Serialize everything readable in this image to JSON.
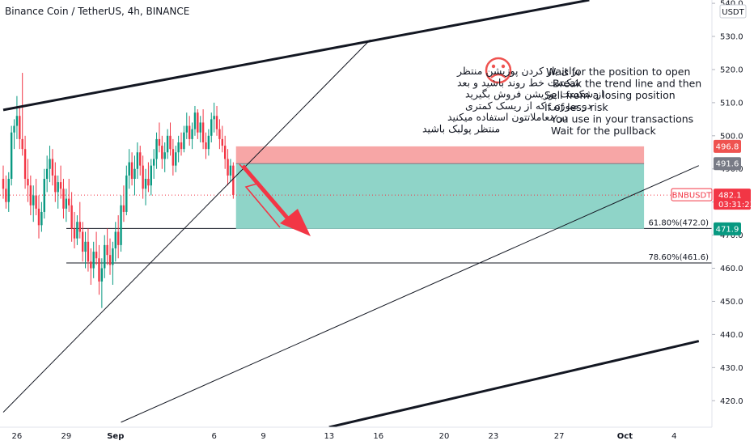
{
  "title": "Binance Coin / TetherUS, 4h, BINANCE",
  "currency": "USDT",
  "chart_data": {
    "type": "candlestick",
    "symbol": "BNBUSDT",
    "interval": "4h",
    "exchange": "BINANCE",
    "ylim": [
      412,
      541
    ],
    "y_ticks": [
      420,
      430,
      440,
      450,
      460,
      470,
      480,
      490,
      500,
      510,
      520,
      530,
      540
    ],
    "x_ticks": [
      {
        "label": "26",
        "i": 5
      },
      {
        "label": "29",
        "i": 23
      },
      {
        "label": "Sep",
        "i": 41
      },
      {
        "label": "6",
        "i": 77
      },
      {
        "label": "9",
        "i": 95
      },
      {
        "label": "13",
        "i": 119
      },
      {
        "label": "16",
        "i": 137
      },
      {
        "label": "20",
        "i": 161
      },
      {
        "label": "23",
        "i": 179
      },
      {
        "label": "27",
        "i": 203
      },
      {
        "label": "Oct",
        "i": 227
      },
      {
        "label": "4",
        "i": 245
      }
    ],
    "price_now": 482.1,
    "countdown": "03:31:23",
    "levels": [
      {
        "label": "496.8",
        "value": 496.8,
        "color": "#ef5350"
      },
      {
        "label": "491.6",
        "value": 491.6,
        "color": "#787b86"
      },
      {
        "label": "471.9",
        "value": 471.9,
        "color": "#089981"
      }
    ],
    "fib_levels": [
      {
        "label": "61.80%(472.0)",
        "value": 472.0
      },
      {
        "label": "78.60%(461.6)",
        "value": 461.6
      }
    ],
    "position": {
      "entry": 491.6,
      "stop": 496.8,
      "target": 471.9,
      "from_i": 85,
      "to_i": 234
    },
    "trendlines": [
      {
        "name": "upper-channel",
        "p1": [
          0,
          507.8
        ],
        "p2": [
          214,
          541
        ]
      },
      {
        "name": "lower-channel",
        "p1": [
          119,
          412
        ],
        "p2": [
          254,
          438
        ]
      },
      {
        "name": "thin-support-1",
        "p1": [
          0,
          416.5
        ],
        "p2": [
          134,
          529
        ]
      },
      {
        "name": "thin-support-2",
        "p1": [
          43,
          413.5
        ],
        "p2": [
          254,
          491
        ]
      }
    ],
    "candles": [
      [
        487.0,
        491.0,
        481.0,
        484.0
      ],
      [
        484.0,
        488.0,
        478.0,
        480.0
      ],
      [
        480.0,
        489.0,
        477.0,
        487.0
      ],
      [
        487.0,
        503.0,
        485.0,
        501.0
      ],
      [
        501.0,
        505.0,
        496.0,
        503.0
      ],
      [
        503.0,
        512.0,
        499.0,
        506.0
      ],
      [
        506.0,
        509.0,
        496.0,
        499.0
      ],
      [
        499.0,
        519.0,
        494.0,
        496.0
      ],
      [
        496.0,
        500.0,
        484.0,
        487.0
      ],
      [
        487.0,
        493.0,
        480.0,
        485.0
      ],
      [
        485.0,
        488.0,
        476.0,
        479.0
      ],
      [
        479.0,
        485.0,
        474.0,
        482.0
      ],
      [
        482.0,
        487.0,
        476.0,
        478.0
      ],
      [
        478.0,
        482.0,
        469.0,
        473.0
      ],
      [
        473.0,
        480.0,
        471.0,
        477.0
      ],
      [
        477.0,
        490.0,
        475.0,
        487.0
      ],
      [
        487.0,
        494.0,
        483.0,
        490.0
      ],
      [
        490.0,
        497.0,
        486.0,
        493.0
      ],
      [
        493.0,
        496.0,
        485.0,
        488.0
      ],
      [
        488.0,
        492.0,
        480.0,
        483.0
      ],
      [
        483.0,
        488.0,
        478.0,
        486.0
      ],
      [
        486.0,
        491.0,
        481.0,
        484.0
      ],
      [
        484.0,
        487.0,
        475.0,
        478.0
      ],
      [
        478.0,
        484.0,
        474.0,
        481.0
      ],
      [
        481.0,
        487.0,
        477.0,
        479.0
      ],
      [
        479.0,
        483.0,
        468.0,
        472.0
      ],
      [
        472.0,
        477.0,
        466.0,
        469.0
      ],
      [
        469.0,
        476.0,
        467.0,
        474.0
      ],
      [
        474.0,
        480.0,
        469.0,
        471.0
      ],
      [
        471.0,
        474.0,
        462.0,
        465.0
      ],
      [
        465.0,
        471.0,
        460.0,
        468.0
      ],
      [
        468.0,
        472.0,
        459.0,
        462.0
      ],
      [
        462.0,
        466.0,
        455.0,
        460.0
      ],
      [
        460.0,
        468.0,
        457.0,
        465.0
      ],
      [
        465.0,
        471.0,
        461.0,
        463.0
      ],
      [
        463.0,
        467.0,
        452.0,
        456.0
      ],
      [
        456.0,
        463.0,
        448.0,
        460.0
      ],
      [
        460.0,
        470.0,
        457.0,
        467.0
      ],
      [
        467.0,
        472.0,
        461.0,
        464.0
      ],
      [
        464.0,
        469.0,
        458.0,
        461.0
      ],
      [
        461.0,
        468.0,
        455.0,
        466.0
      ],
      [
        466.0,
        474.0,
        462.0,
        471.0
      ],
      [
        471.0,
        476.0,
        463.0,
        467.0
      ],
      [
        467.0,
        482.0,
        465.0,
        479.0
      ],
      [
        479.0,
        485.0,
        474.0,
        477.0
      ],
      [
        477.0,
        491.0,
        476.0,
        488.0
      ],
      [
        488.0,
        496.0,
        484.0,
        492.0
      ],
      [
        492.0,
        495.0,
        485.0,
        487.0
      ],
      [
        487.0,
        494.0,
        482.0,
        490.0
      ],
      [
        490.0,
        498.0,
        487.0,
        495.0
      ],
      [
        495.0,
        497.0,
        488.0,
        491.0
      ],
      [
        491.0,
        494.0,
        481.0,
        484.0
      ],
      [
        484.0,
        490.0,
        479.0,
        487.0
      ],
      [
        487.0,
        492.0,
        483.0,
        485.0
      ],
      [
        485.0,
        493.0,
        482.0,
        491.0
      ],
      [
        491.0,
        496.0,
        487.0,
        493.0
      ],
      [
        493.0,
        501.0,
        490.0,
        499.0
      ],
      [
        499.0,
        504.0,
        495.0,
        497.0
      ],
      [
        497.0,
        500.0,
        490.0,
        493.0
      ],
      [
        493.0,
        498.0,
        489.0,
        495.0
      ],
      [
        495.0,
        502.0,
        493.0,
        500.0
      ],
      [
        500.0,
        504.0,
        494.0,
        496.0
      ],
      [
        496.0,
        499.0,
        488.0,
        491.0
      ],
      [
        491.0,
        497.0,
        489.0,
        495.0
      ],
      [
        495.0,
        500.0,
        492.0,
        498.0
      ],
      [
        498.0,
        501.0,
        494.0,
        496.0
      ],
      [
        496.0,
        503.0,
        495.0,
        501.0
      ],
      [
        501.0,
        507.0,
        499.0,
        503.0
      ],
      [
        503.0,
        506.0,
        497.0,
        499.0
      ],
      [
        499.0,
        504.0,
        496.0,
        502.0
      ],
      [
        502.0,
        509.0,
        500.0,
        507.0
      ],
      [
        507.0,
        508.0,
        499.0,
        501.0
      ],
      [
        501.0,
        506.0,
        498.0,
        504.0
      ],
      [
        504.0,
        508.0,
        496.0,
        498.0
      ],
      [
        498.0,
        501.0,
        493.0,
        496.0
      ],
      [
        496.0,
        502.0,
        494.0,
        500.0
      ],
      [
        500.0,
        507.0,
        498.0,
        505.0
      ],
      [
        505.0,
        510.0,
        501.0,
        506.0
      ],
      [
        506.0,
        509.0,
        500.0,
        502.0
      ],
      [
        502.0,
        505.0,
        496.0,
        499.0
      ],
      [
        499.0,
        503.0,
        495.0,
        497.0
      ],
      [
        497.0,
        500.0,
        490.0,
        493.0
      ],
      [
        493.0,
        496.0,
        485.0,
        488.0
      ],
      [
        488.0,
        493.0,
        486.0,
        491.0
      ],
      [
        491.0,
        492.0,
        481.0,
        482.1
      ]
    ]
  },
  "farsi_note": [
    "برای باز کردن پوزیشن منتظر",
    "شکست خط روند باشید و بعد",
    "از شکست پوزیشن فروش بگیرید",
    "در صورتی که از ریسک کمتری",
    "در معاملاتتون استفاده میکنید",
    "منتظر پولبک باشید"
  ],
  "english_note": [
    "Wait for the position to open",
    "Break the trend line and then",
    "Sell from a losing position",
    "If of less risk",
    "You use in your transactions",
    "Wait for the pullback"
  ],
  "colors": {
    "up": "#089981",
    "down": "#f23645",
    "risk": "#f7a6a6",
    "reward": "#8fd4c8",
    "arrow": "#f23645",
    "smiley": "#ef5350"
  },
  "icons": {
    "smiley": "frowning-face-icon"
  }
}
